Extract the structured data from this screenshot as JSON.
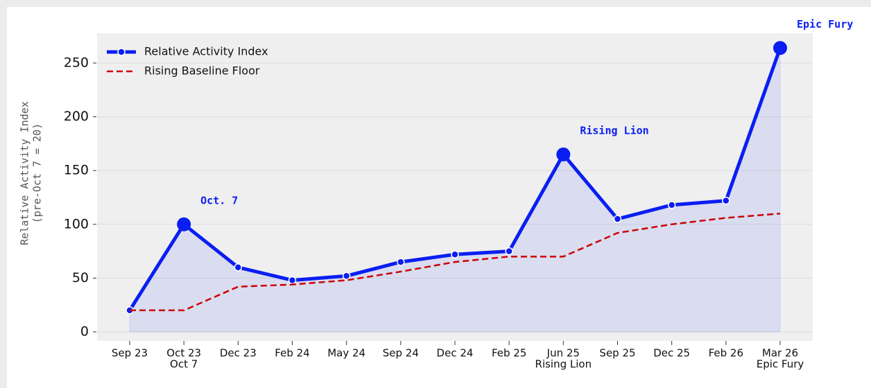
{
  "chart_data": {
    "type": "line",
    "ylabel": [
      "Relative Activity Index",
      "(pre-Oct 7 = 20)"
    ],
    "categories": [
      "Sep 23",
      "Oct 23",
      "Dec 23",
      "Feb 24",
      "May 24",
      "Sep 24",
      "Dec 24",
      "Feb 25",
      "Jun 25",
      "Sep 25",
      "Dec 25",
      "Feb 26",
      "Mar 26"
    ],
    "sublabels": [
      null,
      "Oct 7",
      null,
      null,
      null,
      null,
      null,
      null,
      "Rising Lion",
      null,
      null,
      null,
      "Epic Fury"
    ],
    "series": [
      {
        "name": "Relative Activity Index",
        "color": "#0a1ef2",
        "linestyle": "solid",
        "markers": true,
        "fill": true,
        "values": [
          20,
          100,
          60,
          48,
          52,
          65,
          72,
          75,
          165,
          105,
          118,
          122,
          264
        ]
      },
      {
        "name": "Rising Baseline Floor",
        "color": "#cc0000",
        "linestyle": "dashed",
        "markers": false,
        "fill": false,
        "values": [
          20,
          20,
          42,
          44,
          48,
          56,
          65,
          70,
          70,
          92,
          100,
          106,
          110
        ]
      }
    ],
    "annotations": [
      {
        "text": "Oct. 7",
        "category": "Oct 23"
      },
      {
        "text": "Rising Lion",
        "category": "Jun 25"
      },
      {
        "text": "Epic Fury",
        "category": "Mar 26"
      }
    ],
    "ylim": [
      -8.4,
      277.7
    ],
    "yticks": [
      0,
      50,
      100,
      150,
      200,
      250
    ],
    "grid": true,
    "legend": "upper left"
  }
}
